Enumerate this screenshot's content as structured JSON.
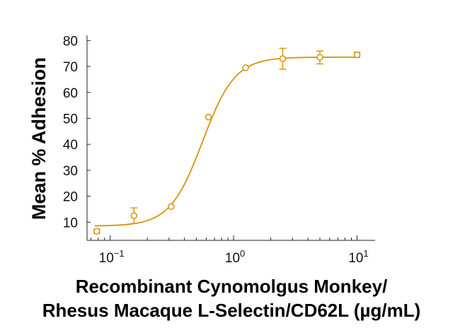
{
  "colors": {
    "series": "#D4940A",
    "axis": "#222222"
  },
  "chart_data": {
    "type": "scatter",
    "title": "",
    "ylabel": "Mean % Adhesion",
    "xlabel_lines": [
      "Recombinant Cynomolgus Monkey/",
      "Rhesus Macaque L-Selectin/CD62L (µg/mL)"
    ],
    "x_scale": "log",
    "xlim": [
      0.065,
      14
    ],
    "ylim": [
      3,
      82
    ],
    "y_ticks": [
      10,
      20,
      30,
      40,
      50,
      60,
      70,
      80
    ],
    "x_ticks": [
      {
        "value": 0.1,
        "base": "10",
        "exp": "−1"
      },
      {
        "value": 1,
        "base": "10",
        "exp": "0"
      },
      {
        "value": 10,
        "base": "10",
        "exp": "1"
      }
    ],
    "grid": false,
    "points": [
      {
        "x": 0.078,
        "y": 6.5,
        "err": 0.8
      },
      {
        "x": 0.156,
        "y": 12.5,
        "err": 3.0
      },
      {
        "x": 0.3125,
        "y": 16.0,
        "err": 0
      },
      {
        "x": 0.625,
        "y": 50.5,
        "err": 0
      },
      {
        "x": 1.25,
        "y": 69.5,
        "err": 0
      },
      {
        "x": 2.5,
        "y": 73.0,
        "err": 4.0
      },
      {
        "x": 5.0,
        "y": 73.5,
        "err": 2.5
      },
      {
        "x": 10.0,
        "y": 74.5,
        "err": 1.0
      }
    ],
    "fit_curve": {
      "bottom": 8.5,
      "top": 73.6,
      "ec50": 0.56,
      "hill": 3.3
    }
  }
}
